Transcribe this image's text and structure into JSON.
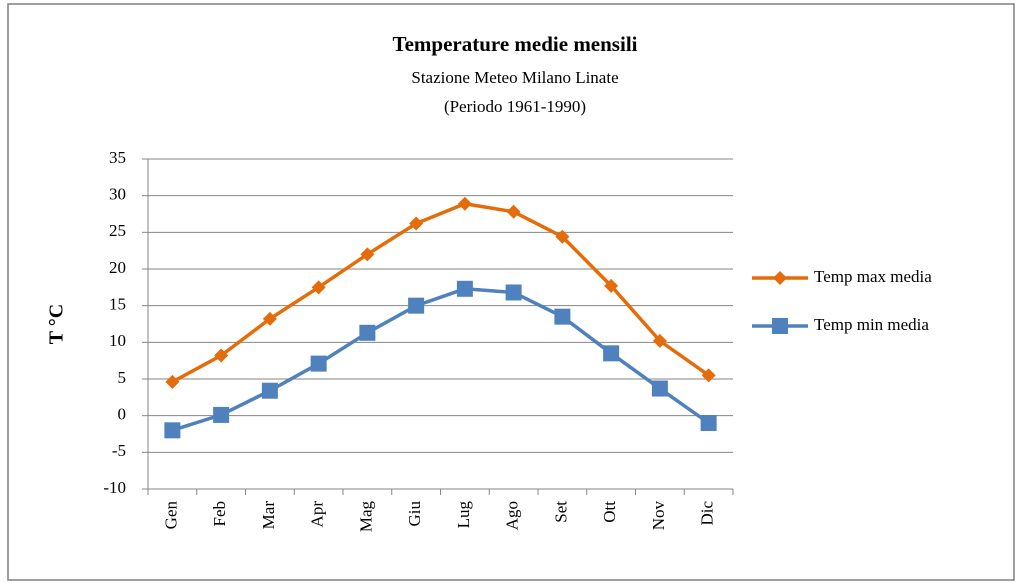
{
  "chart_data": {
    "type": "line",
    "title": "Temperature medie mensili",
    "subtitle": [
      "Stazione Meteo Milano Linate",
      "(Periodo 1961-1990)"
    ],
    "y_label": "T °C",
    "categories": [
      "Gen",
      "Feb",
      "Mar",
      "Apr",
      "Mag",
      "Giu",
      "Lug",
      "Ago",
      "Set",
      "Ott",
      "Nov",
      "Dic"
    ],
    "series": [
      {
        "name": "Temp max media",
        "color": "#e46c0a",
        "marker": "diamond",
        "values": [
          4.6,
          8.2,
          13.2,
          17.5,
          22.0,
          26.2,
          28.9,
          27.8,
          24.4,
          17.7,
          10.2,
          5.5
        ]
      },
      {
        "name": "Temp min media",
        "color": "#4f81bd",
        "marker": "square",
        "values": [
          -2.0,
          0.1,
          3.4,
          7.1,
          11.3,
          15.0,
          17.3,
          16.8,
          13.5,
          8.5,
          3.7,
          -1.0
        ]
      }
    ],
    "ylim": [
      -10,
      35
    ],
    "yticks": [
      -10,
      -5,
      0,
      5,
      10,
      15,
      20,
      25,
      30,
      35
    ],
    "grid": true,
    "legend": "right"
  }
}
